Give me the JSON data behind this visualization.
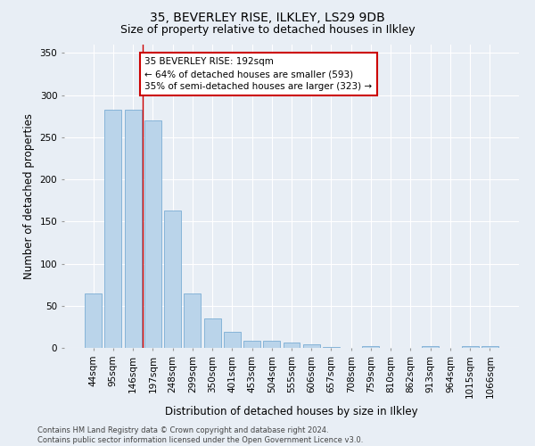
{
  "title": "35, BEVERLEY RISE, ILKLEY, LS29 9DB",
  "subtitle": "Size of property relative to detached houses in Ilkley",
  "xlabel": "Distribution of detached houses by size in Ilkley",
  "ylabel": "Number of detached properties",
  "footnote": "Contains HM Land Registry data © Crown copyright and database right 2024.\nContains public sector information licensed under the Open Government Licence v3.0.",
  "bar_color": "#bad4ea",
  "bar_edge_color": "#7aadd4",
  "categories": [
    "44sqm",
    "95sqm",
    "146sqm",
    "197sqm",
    "248sqm",
    "299sqm",
    "350sqm",
    "401sqm",
    "453sqm",
    "504sqm",
    "555sqm",
    "606sqm",
    "657sqm",
    "708sqm",
    "759sqm",
    "810sqm",
    "862sqm",
    "913sqm",
    "964sqm",
    "1015sqm",
    "1066sqm"
  ],
  "values": [
    65,
    283,
    283,
    270,
    163,
    65,
    35,
    19,
    8,
    9,
    6,
    4,
    1,
    0,
    2,
    0,
    0,
    2,
    0,
    2,
    2
  ],
  "ylim": [
    0,
    360
  ],
  "yticks": [
    0,
    50,
    100,
    150,
    200,
    250,
    300,
    350
  ],
  "annotation_text": "35 BEVERLEY RISE: 192sqm\n← 64% of detached houses are smaller (593)\n35% of semi-detached houses are larger (323) →",
  "annotation_box_color": "#ffffff",
  "annotation_border_color": "#cc0000",
  "vline_color": "#cc0000",
  "background_color": "#e8eef5",
  "grid_color": "#ffffff",
  "title_fontsize": 10,
  "subtitle_fontsize": 9,
  "axis_label_fontsize": 8.5,
  "tick_fontsize": 7.5,
  "footnote_fontsize": 6,
  "annotation_fontsize": 7.5
}
